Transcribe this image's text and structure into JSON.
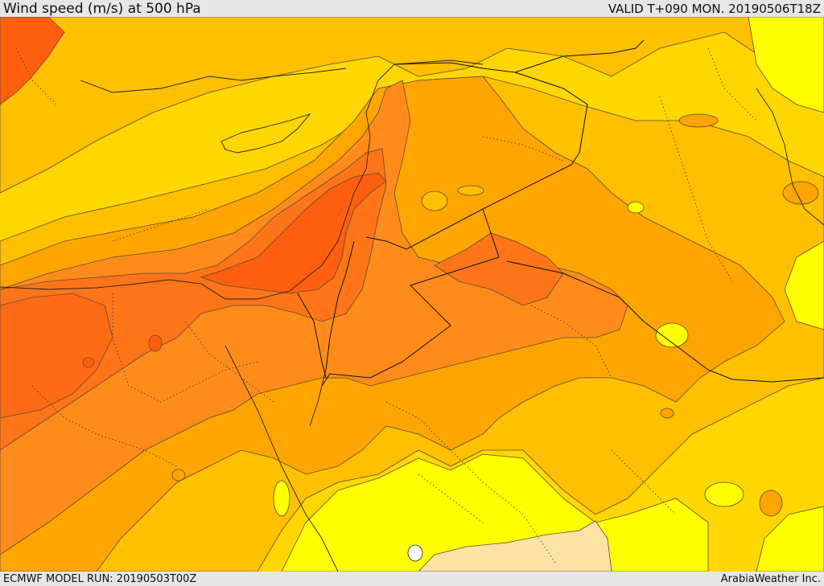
{
  "header": {
    "title": "Wind speed (m/s) at 500 hPa",
    "valid_time": "VALID T+090 MON. 20190506T18Z"
  },
  "footer": {
    "model_run": "ECMWF MODEL RUN: 20190503T00Z",
    "credit": "ArabiaWeather Inc."
  },
  "colors": {
    "band_lightest": "#fde2a6",
    "band_yellow": "#ffff00",
    "band_gold": "#ffd700",
    "band_amber": "#ffc000",
    "band_orange": "#ffa500",
    "band_dark_orange": "#ff8c1a",
    "band_red_orange": "#ff7518",
    "band_core": "#ff5f0f"
  }
}
